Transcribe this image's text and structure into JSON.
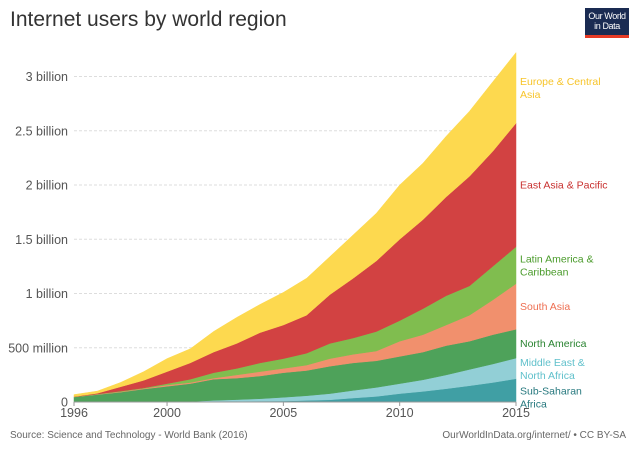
{
  "title": "Internet users by world region",
  "logo": "Our World in Data",
  "source": "Source: Science and Technology - World Bank (2016)",
  "credit": "OurWorldInData.org/internet/ • CC BY-SA",
  "chart_data": {
    "type": "area",
    "stacked": true,
    "title": "Internet users by world region",
    "x": [
      1996,
      1997,
      1998,
      1999,
      2000,
      2001,
      2002,
      2003,
      2004,
      2005,
      2006,
      2007,
      2008,
      2009,
      2010,
      2011,
      2012,
      2013,
      2014,
      2015
    ],
    "unit": "millions",
    "ylim": [
      0,
      3300
    ],
    "xlim": [
      1996,
      2015
    ],
    "y_ticks": [
      {
        "value": 0,
        "label": "0"
      },
      {
        "value": 500,
        "label": "500 million"
      },
      {
        "value": 1000,
        "label": "1 billion"
      },
      {
        "value": 1500,
        "label": "1.5 billion"
      },
      {
        "value": 2000,
        "label": "2 billion"
      },
      {
        "value": 2500,
        "label": "2.5 billion"
      },
      {
        "value": 3000,
        "label": "3 billion"
      }
    ],
    "x_ticks": [
      1996,
      2000,
      2005,
      2010,
      2015
    ],
    "grid": "horizontal dashed",
    "legend": "right (inline labels)",
    "series": [
      {
        "name": "Sub-Saharan Africa",
        "label_lines": [
          "Sub-Saharan",
          "Africa"
        ],
        "color": "#409fa4",
        "label_color": "#26787e",
        "values": [
          0,
          0,
          1,
          1,
          2,
          3,
          4,
          6,
          8,
          9,
          15,
          20,
          37,
          52,
          77,
          98,
          123,
          150,
          180,
          215
        ]
      },
      {
        "name": "Middle East & North Africa",
        "label_lines": [
          "Middle East &",
          "North Africa"
        ],
        "color": "#92cfd6",
        "label_color": "#5fc0cb",
        "values": [
          0,
          1,
          1,
          2,
          1,
          2,
          11,
          16,
          22,
          34,
          43,
          57,
          70,
          83,
          93,
          107,
          127,
          150,
          170,
          190
        ]
      },
      {
        "name": "North America",
        "label_lines": [
          "North America"
        ],
        "color": "#4ea25a",
        "label_color": "#2a8431",
        "values": [
          46,
          67,
          88,
          117,
          142,
          165,
          195,
          198,
          210,
          227,
          232,
          253,
          253,
          245,
          250,
          255,
          270,
          260,
          270,
          265
        ]
      },
      {
        "name": "South Asia",
        "label_lines": [
          "South Asia"
        ],
        "color": "#f1906d",
        "label_color": "#ee6f52",
        "values": [
          1,
          4,
          5,
          5,
          12,
          10,
          10,
          30,
          40,
          40,
          50,
          70,
          80,
          90,
          140,
          160,
          190,
          240,
          320,
          420
        ]
      },
      {
        "name": "Latin America & Caribbean",
        "label_lines": [
          "Latin America &",
          "Caribbean"
        ],
        "color": "#80bd4f",
        "label_color": "#4a9b2b",
        "values": [
          1,
          2,
          5,
          5,
          13,
          30,
          50,
          60,
          80,
          90,
          110,
          140,
          150,
          180,
          190,
          240,
          270,
          270,
          310,
          340
        ]
      },
      {
        "name": "East Asia & Pacific",
        "label_lines": [
          "East Asia & Pacific"
        ],
        "color": "#d24242",
        "label_color": "#c8302f",
        "values": [
          2,
          6,
          40,
          70,
          110,
          150,
          190,
          230,
          280,
          310,
          350,
          450,
          550,
          650,
          750,
          820,
          910,
          1010,
          1060,
          1140
        ]
      },
      {
        "name": "Europe & Central Asia",
        "label_lines": [
          "Europe & Central",
          "Asia"
        ],
        "color": "#fdd94f",
        "label_color": "#f7c429",
        "values": [
          18,
          20,
          40,
          80,
          120,
          130,
          190,
          240,
          260,
          300,
          340,
          350,
          400,
          440,
          500,
          520,
          560,
          600,
          640,
          650
        ]
      }
    ]
  }
}
